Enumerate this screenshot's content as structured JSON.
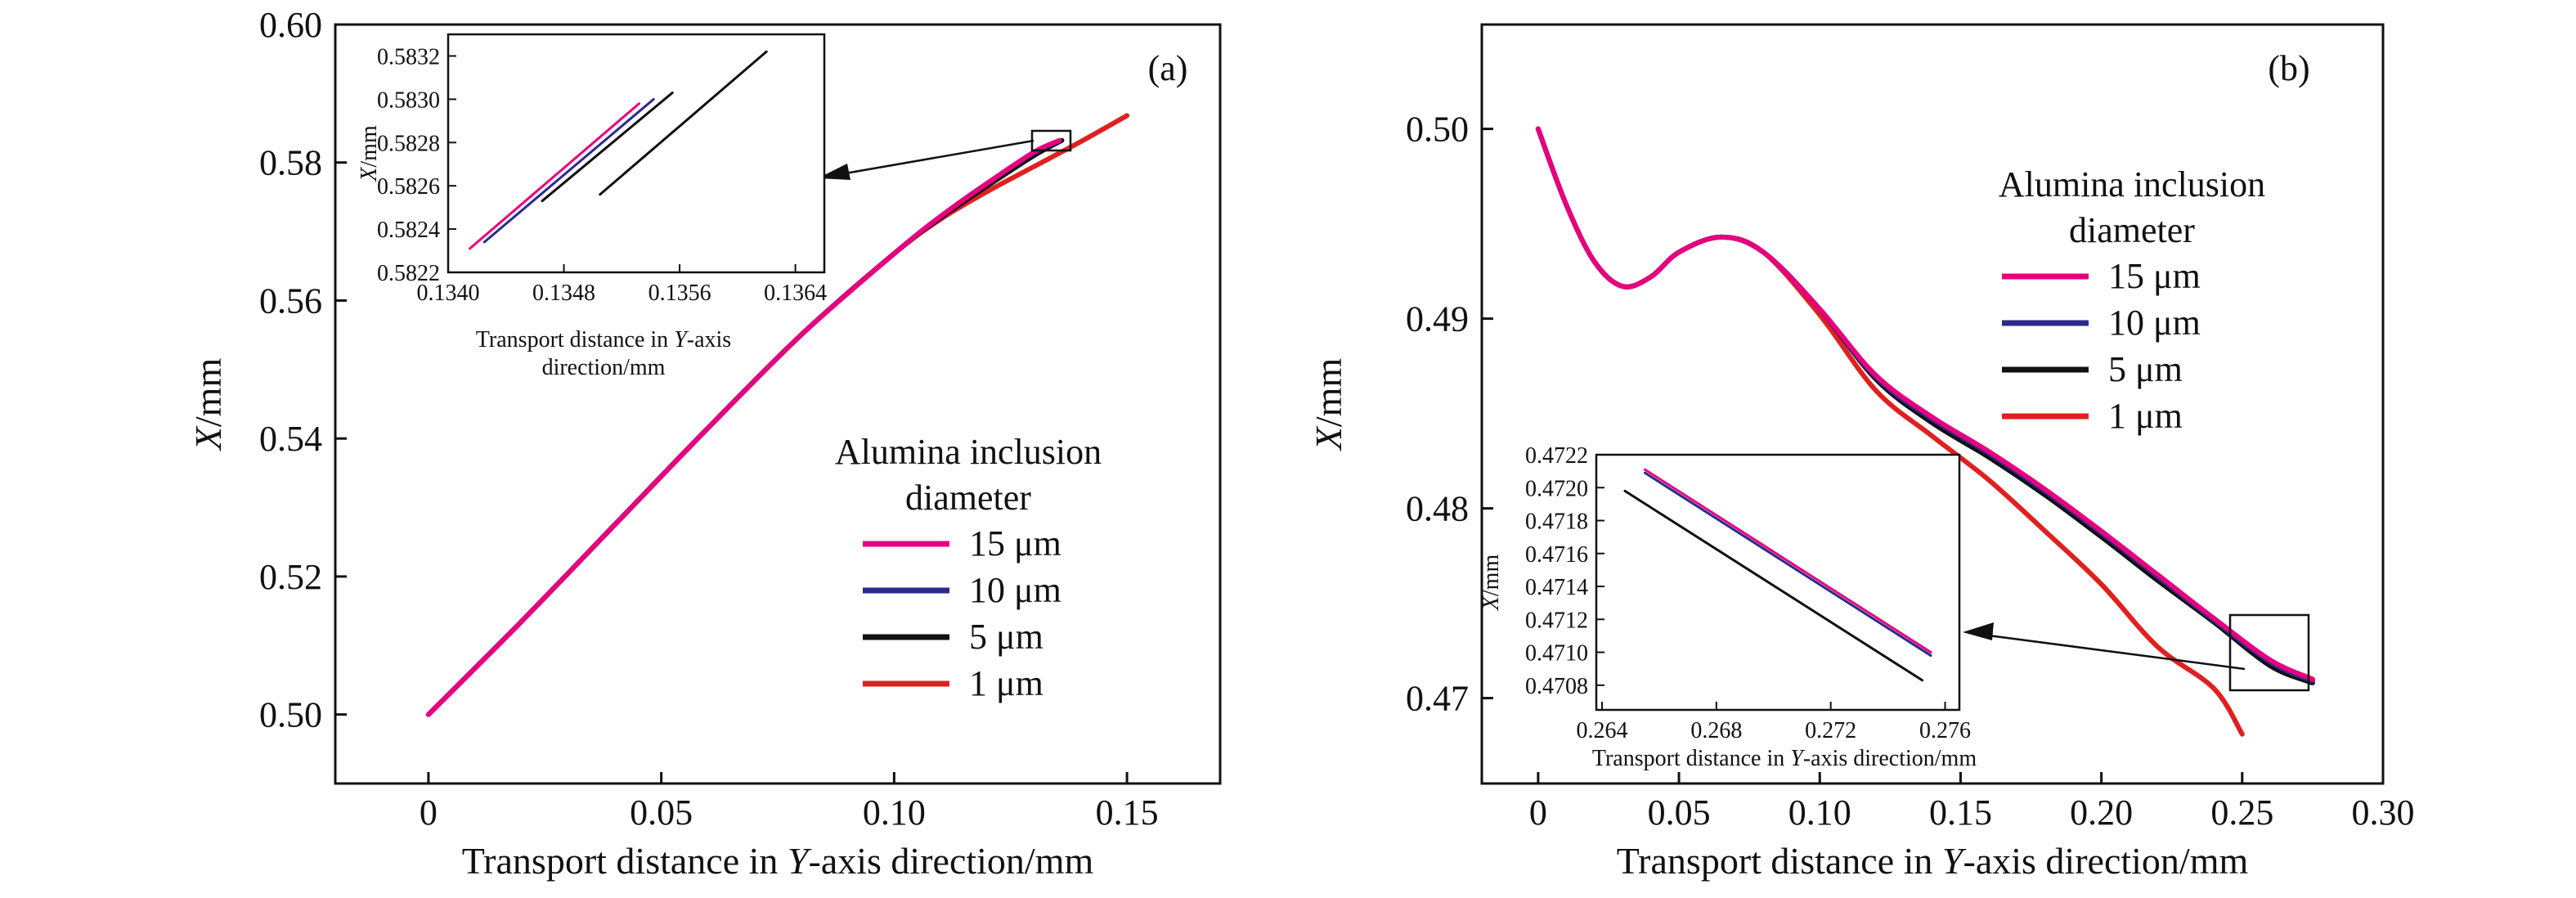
{
  "chart_data": [
    {
      "type": "line",
      "panel_label": "(a)",
      "xlabel": "Transport distance in Y-axis direction/mm",
      "ylabel": "X/mm",
      "xlim": [
        -0.02,
        0.17
      ],
      "ylim": [
        0.49,
        0.6
      ],
      "x_ticks": [
        "0",
        "0.05",
        "0.10",
        "0.15"
      ],
      "y_ticks": [
        "0.50",
        "0.52",
        "0.54",
        "0.56",
        "0.58",
        "0.60"
      ],
      "legend_title": [
        "Alumina inclusion",
        "diameter"
      ],
      "legend_position": "center-right",
      "series": [
        {
          "name": "15 μm",
          "color": "#e6007e",
          "x": [
            0,
            0.02,
            0.04,
            0.06,
            0.08,
            0.1,
            0.11,
            0.12,
            0.13,
            0.1355
          ],
          "y": [
            0.5,
            0.5135,
            0.5275,
            0.5415,
            0.555,
            0.5668,
            0.5722,
            0.577,
            0.5815,
            0.5832
          ]
        },
        {
          "name": "10 μm",
          "color": "#2b2a8c",
          "x": [
            0,
            0.02,
            0.04,
            0.06,
            0.08,
            0.1,
            0.11,
            0.12,
            0.13,
            0.1354
          ],
          "y": [
            0.5,
            0.5135,
            0.5275,
            0.5415,
            0.555,
            0.5668,
            0.5722,
            0.577,
            0.5814,
            0.5831
          ]
        },
        {
          "name": "5 μm",
          "color": "#111111",
          "x": [
            0,
            0.02,
            0.04,
            0.06,
            0.08,
            0.1,
            0.11,
            0.12,
            0.13,
            0.136
          ],
          "y": [
            0.5,
            0.5135,
            0.5275,
            0.5415,
            0.555,
            0.5668,
            0.572,
            0.5766,
            0.581,
            0.5832
          ]
        },
        {
          "name": "1 μm",
          "color": "#e02020",
          "x": [
            0,
            0.02,
            0.04,
            0.06,
            0.08,
            0.1,
            0.11,
            0.12,
            0.13,
            0.14,
            0.15
          ],
          "y": [
            0.5,
            0.5135,
            0.5275,
            0.5415,
            0.555,
            0.5668,
            0.5718,
            0.5758,
            0.5794,
            0.583,
            0.5868
          ]
        }
      ],
      "inset": {
        "xlabel": "Transport distance in Y-axis direction/mm",
        "ylabel": "X/mm",
        "xlim": [
          0.134,
          0.1366
        ],
        "ylim": [
          0.5822,
          0.5833
        ],
        "x_ticks": [
          "0.1340",
          "0.1348",
          "0.1356",
          "0.1364"
        ],
        "y_ticks": [
          "0.5822",
          "0.5824",
          "0.5826",
          "0.5828",
          "0.5830",
          "0.5832"
        ],
        "series": [
          {
            "name": "15 μm",
            "color": "#e6007e",
            "x": [
              0.13415,
              0.13532
            ],
            "y": [
              0.58231,
              0.58298
            ]
          },
          {
            "name": "10 μm",
            "color": "#2b2a8c",
            "x": [
              0.13425,
              0.13542
            ],
            "y": [
              0.58234,
              0.583
            ]
          },
          {
            "name": "5 μm",
            "color": "#111111",
            "x": [
              0.13465,
              0.13555
            ],
            "y": [
              0.58253,
              0.58303
            ]
          },
          {
            "name": "1 μm",
            "color": "#111111",
            "x": [
              0.13505,
              0.1362
            ],
            "y": [
              0.58256,
              0.58322
            ]
          }
        ]
      }
    },
    {
      "type": "line",
      "panel_label": "(b)",
      "xlabel": "Transport distance in Y-axis direction/mm",
      "ylabel": "X/mm",
      "xlim": [
        -0.02,
        0.3
      ],
      "ylim": [
        0.4655,
        0.5055
      ],
      "x_ticks": [
        "0",
        "0.05",
        "0.10",
        "0.15",
        "0.20",
        "0.25",
        "0.30"
      ],
      "y_ticks": [
        "0.47",
        "0.48",
        "0.49",
        "0.50"
      ],
      "legend_title": [
        "Alumina inclusion",
        "diameter"
      ],
      "legend_position": "top-right",
      "series": [
        {
          "name": "15 μm",
          "color": "#e6007e",
          "x": [
            0,
            0.01,
            0.02,
            0.03,
            0.04,
            0.05,
            0.065,
            0.08,
            0.1,
            0.12,
            0.14,
            0.16,
            0.18,
            0.2,
            0.22,
            0.24,
            0.26,
            0.275
          ],
          "y": [
            0.5,
            0.496,
            0.493,
            0.4917,
            0.4922,
            0.4935,
            0.4943,
            0.4935,
            0.4905,
            0.487,
            0.4848,
            0.483,
            0.481,
            0.4788,
            0.4765,
            0.4742,
            0.472,
            0.471
          ]
        },
        {
          "name": "10 μm",
          "color": "#2b2a8c",
          "x": [
            0,
            0.01,
            0.02,
            0.03,
            0.04,
            0.05,
            0.065,
            0.08,
            0.1,
            0.12,
            0.14,
            0.16,
            0.18,
            0.2,
            0.22,
            0.24,
            0.26,
            0.275
          ],
          "y": [
            0.5,
            0.496,
            0.493,
            0.4917,
            0.4922,
            0.4935,
            0.4943,
            0.4935,
            0.4905,
            0.4869,
            0.4847,
            0.4829,
            0.4809,
            0.4787,
            0.4764,
            0.4741,
            0.4719,
            0.4709
          ]
        },
        {
          "name": "5 μm",
          "color": "#111111",
          "x": [
            0,
            0.01,
            0.02,
            0.03,
            0.04,
            0.05,
            0.065,
            0.08,
            0.1,
            0.12,
            0.14,
            0.16,
            0.18,
            0.2,
            0.22,
            0.24,
            0.26,
            0.275
          ],
          "y": [
            0.5,
            0.496,
            0.493,
            0.4917,
            0.4922,
            0.4935,
            0.4943,
            0.4935,
            0.4905,
            0.4868,
            0.4845,
            0.4827,
            0.4807,
            0.4785,
            0.4762,
            0.474,
            0.4717,
            0.4708
          ]
        },
        {
          "name": "1 μm",
          "color": "#e02020",
          "x": [
            0,
            0.01,
            0.02,
            0.03,
            0.04,
            0.05,
            0.065,
            0.08,
            0.1,
            0.12,
            0.14,
            0.16,
            0.18,
            0.2,
            0.22,
            0.24,
            0.25
          ],
          "y": [
            0.5,
            0.496,
            0.493,
            0.4917,
            0.4922,
            0.4935,
            0.4943,
            0.4935,
            0.4902,
            0.4862,
            0.4838,
            0.4815,
            0.4788,
            0.476,
            0.4727,
            0.4705,
            0.4681
          ]
        }
      ],
      "inset": {
        "xlabel": "Transport distance in Y-axis direction/mm",
        "ylabel": "X/mm",
        "xlim": [
          0.2638,
          0.2765
        ],
        "ylim": [
          0.47065,
          0.4722
        ],
        "x_ticks": [
          "0.264",
          "0.268",
          "0.272",
          "0.276"
        ],
        "y_ticks": [
          "0.4708",
          "0.4710",
          "0.4712",
          "0.4714",
          "0.4716",
          "0.4718",
          "0.4720",
          "0.4722"
        ],
        "series": [
          {
            "name": "15 μm",
            "color": "#e6007e",
            "x": [
              0.2655,
              0.2755
            ],
            "y": [
              0.47211,
              0.471
            ]
          },
          {
            "name": "10 μm",
            "color": "#2b2a8c",
            "x": [
              0.2655,
              0.2755
            ],
            "y": [
              0.47209,
              0.47098
            ]
          },
          {
            "name": "5 μm",
            "color": "#111111",
            "x": [
              0.2648,
              0.2752
            ],
            "y": [
              0.47198,
              0.47083
            ]
          }
        ]
      }
    }
  ]
}
